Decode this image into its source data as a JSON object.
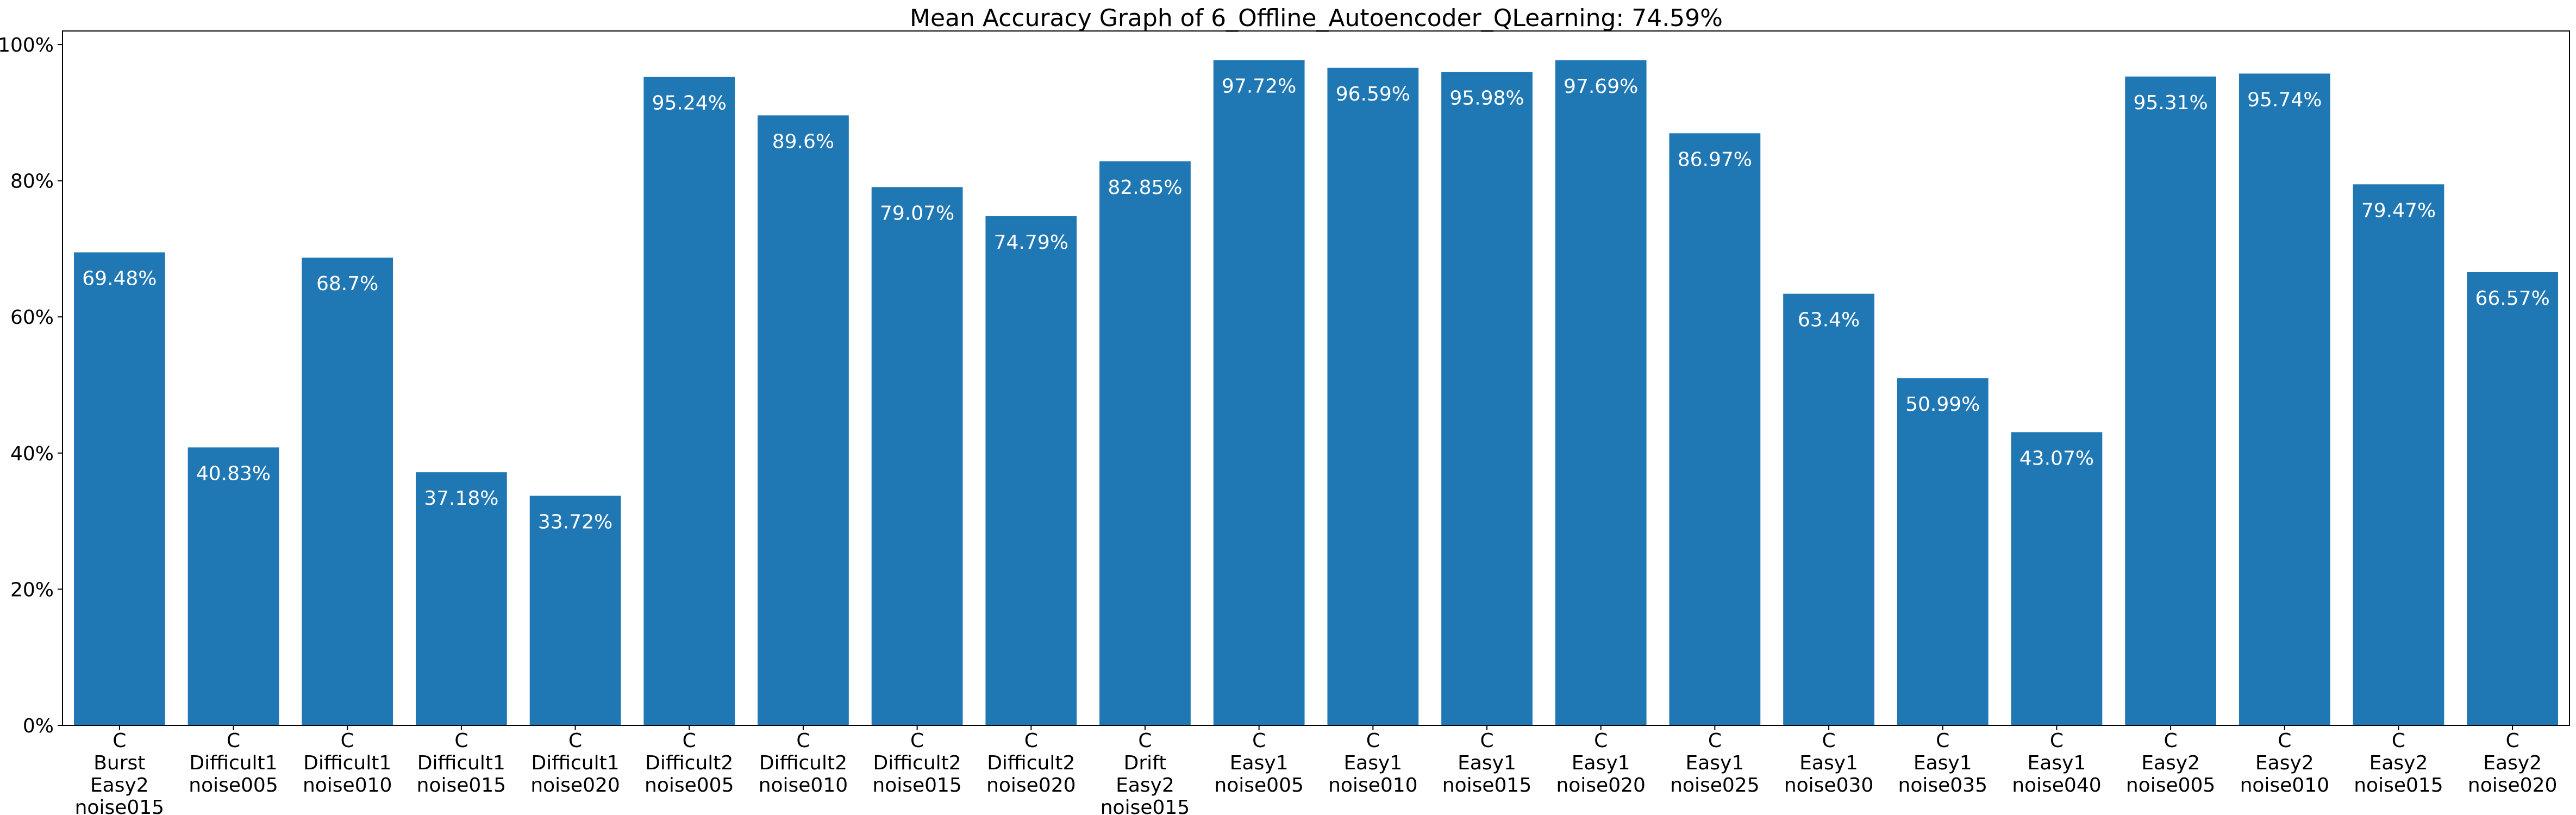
{
  "chart_data": {
    "type": "bar",
    "title": "Mean Accuracy Graph of 6_Offline_Autoencoder_QLearning: 74.59%",
    "xlabel": "",
    "ylabel": "",
    "ylim": [
      0,
      102
    ],
    "yticks": [
      0,
      20,
      40,
      60,
      80,
      100
    ],
    "ytick_labels": [
      "0%",
      "20%",
      "40%",
      "60%",
      "80%",
      "100%"
    ],
    "grid": false,
    "bar_color": "#1f77b4",
    "label_color": "#ffffff",
    "categories": [
      [
        "C",
        "Burst",
        "Easy2",
        "noise015"
      ],
      [
        "C",
        "Difficult1",
        "noise005"
      ],
      [
        "C",
        "Difficult1",
        "noise010"
      ],
      [
        "C",
        "Difficult1",
        "noise015"
      ],
      [
        "C",
        "Difficult1",
        "noise020"
      ],
      [
        "C",
        "Difficult2",
        "noise005"
      ],
      [
        "C",
        "Difficult2",
        "noise010"
      ],
      [
        "C",
        "Difficult2",
        "noise015"
      ],
      [
        "C",
        "Difficult2",
        "noise020"
      ],
      [
        "C",
        "Drift",
        "Easy2",
        "noise015"
      ],
      [
        "C",
        "Easy1",
        "noise005"
      ],
      [
        "C",
        "Easy1",
        "noise010"
      ],
      [
        "C",
        "Easy1",
        "noise015"
      ],
      [
        "C",
        "Easy1",
        "noise020"
      ],
      [
        "C",
        "Easy1",
        "noise025"
      ],
      [
        "C",
        "Easy1",
        "noise030"
      ],
      [
        "C",
        "Easy1",
        "noise035"
      ],
      [
        "C",
        "Easy1",
        "noise040"
      ],
      [
        "C",
        "Easy2",
        "noise005"
      ],
      [
        "C",
        "Easy2",
        "noise010"
      ],
      [
        "C",
        "Easy2",
        "noise015"
      ],
      [
        "C",
        "Easy2",
        "noise020"
      ]
    ],
    "values": [
      69.48,
      40.83,
      68.7,
      37.18,
      33.72,
      95.24,
      89.6,
      79.07,
      74.79,
      82.85,
      97.72,
      96.59,
      95.98,
      97.69,
      86.97,
      63.4,
      50.99,
      43.07,
      95.31,
      95.74,
      79.47,
      66.57
    ],
    "value_labels": [
      "69.48%",
      "40.83%",
      "68.7%",
      "37.18%",
      "33.72%",
      "95.24%",
      "89.6%",
      "79.07%",
      "74.79%",
      "82.85%",
      "97.72%",
      "96.59%",
      "95.98%",
      "97.69%",
      "86.97%",
      "63.4%",
      "50.99%",
      "43.07%",
      "95.31%",
      "95.74%",
      "79.47%",
      "66.57%"
    ]
  }
}
